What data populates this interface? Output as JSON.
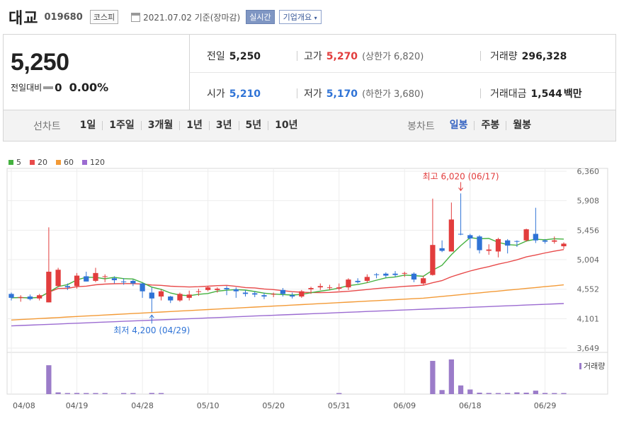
{
  "header": {
    "stock_name": "대교",
    "stock_code": "019680",
    "market": "코스피",
    "date_text": "2021.07.02 기준(장마감)",
    "realtime_label": "실시간",
    "company_info_label": "기업개요"
  },
  "summary": {
    "price": "5,250",
    "change_label": "전일대비",
    "change_value": "0",
    "change_rate": "0.00%",
    "prev_close_label": "전일",
    "prev_close": "5,250",
    "high_label": "고가",
    "high": "5,270",
    "upper_limit_label": "(상한가",
    "upper_limit": "6,820)",
    "volume_label": "거래량",
    "volume": "296,328",
    "open_label": "시가",
    "open": "5,210",
    "low_label": "저가",
    "low": "5,170",
    "lower_limit_label": "(하한가",
    "lower_limit": "3,680)",
    "amount_label": "거래대금",
    "amount": "1,544",
    "amount_unit": "백만"
  },
  "period_bar": {
    "line_label": "선차트",
    "line_periods": [
      "1일",
      "1주일",
      "3개월",
      "1년",
      "3년",
      "5년",
      "10년"
    ],
    "candle_label": "봉차트",
    "candle_periods": [
      "일봉",
      "주봉",
      "월봉"
    ],
    "active_candle": "일봉"
  },
  "colors": {
    "up": "#e23d3d",
    "down": "#2f73d6",
    "accent": "#3563c1",
    "ma5": "#44b13f",
    "ma20": "#e84a4a",
    "ma60": "#f39a36",
    "ma120": "#9b6bd1",
    "volume": "#9b7cc9"
  },
  "chart_data": {
    "type": "candlestick",
    "legend": [
      {
        "name": "5",
        "color": "#44b13f"
      },
      {
        "name": "20",
        "color": "#e84a4a"
      },
      {
        "name": "60",
        "color": "#f39a36"
      },
      {
        "name": "120",
        "color": "#9b6bd1"
      }
    ],
    "y_ticks": [
      "6,360",
      "5,908",
      "5,456",
      "5,004",
      "4,552",
      "4,101",
      "3,649"
    ],
    "ylim": [
      3649,
      6360
    ],
    "x_ticks": [
      {
        "label": "04/08",
        "index": 0
      },
      {
        "label": "04/19",
        "index": 7
      },
      {
        "label": "04/28",
        "index": 14
      },
      {
        "label": "05/10",
        "index": 21
      },
      {
        "label": "05/20",
        "index": 28
      },
      {
        "label": "05/31",
        "index": 35
      },
      {
        "label": "06/09",
        "index": 42
      },
      {
        "label": "06/18",
        "index": 49
      },
      {
        "label": "06/29",
        "index": 57
      }
    ],
    "annotations": {
      "high": {
        "text": "최고 6,020 (06/17)",
        "index": 48,
        "value": 6020
      },
      "low": {
        "text": "최저 4,200 (04/29)",
        "index": 15,
        "value": 4200
      }
    },
    "volume_label": "거래량",
    "candles": [
      [
        4480,
        4500,
        4380,
        4420
      ],
      [
        4420,
        4460,
        4360,
        4430
      ],
      [
        4440,
        4470,
        4380,
        4400
      ],
      [
        4410,
        4480,
        4380,
        4460
      ],
      [
        4350,
        5500,
        4350,
        4820
      ],
      [
        4600,
        4880,
        4580,
        4850
      ],
      [
        4600,
        4640,
        4540,
        4580
      ],
      [
        4600,
        4800,
        4560,
        4760
      ],
      [
        4750,
        4820,
        4670,
        4670
      ],
      [
        4680,
        4880,
        4660,
        4800
      ],
      [
        4740,
        4780,
        4660,
        4750
      ],
      [
        4720,
        4750,
        4640,
        4690
      ],
      [
        4670,
        4720,
        4620,
        4660
      ],
      [
        4680,
        4700,
        4600,
        4640
      ],
      [
        4640,
        4650,
        4420,
        4520
      ],
      [
        4500,
        4580,
        4200,
        4410
      ],
      [
        4440,
        4550,
        4380,
        4520
      ],
      [
        4440,
        4450,
        4340,
        4380
      ],
      [
        4380,
        4500,
        4360,
        4480
      ],
      [
        4420,
        4530,
        4380,
        4470
      ],
      [
        4520,
        4560,
        4450,
        4520
      ],
      [
        4540,
        4600,
        4520,
        4580
      ],
      [
        4540,
        4580,
        4500,
        4560
      ],
      [
        4570,
        4600,
        4460,
        4550
      ],
      [
        4550,
        4580,
        4420,
        4520
      ],
      [
        4500,
        4540,
        4440,
        4480
      ],
      [
        4490,
        4520,
        4430,
        4470
      ],
      [
        4460,
        4500,
        4400,
        4440
      ],
      [
        4470,
        4500,
        4430,
        4480
      ],
      [
        4540,
        4570,
        4440,
        4480
      ],
      [
        4460,
        4500,
        4410,
        4440
      ],
      [
        4440,
        4540,
        4420,
        4520
      ],
      [
        4550,
        4590,
        4480,
        4570
      ],
      [
        4580,
        4640,
        4540,
        4600
      ],
      [
        4580,
        4620,
        4540,
        4580
      ],
      [
        4560,
        4640,
        4530,
        4580
      ],
      [
        4580,
        4720,
        4540,
        4700
      ],
      [
        4680,
        4720,
        4640,
        4660
      ],
      [
        4680,
        4780,
        4650,
        4740
      ],
      [
        4780,
        4800,
        4720,
        4770
      ],
      [
        4790,
        4810,
        4730,
        4760
      ],
      [
        4790,
        4830,
        4740,
        4770
      ],
      [
        4790,
        4820,
        4740,
        4800
      ],
      [
        4790,
        4810,
        4660,
        4700
      ],
      [
        4640,
        4760,
        4620,
        4720
      ],
      [
        4770,
        5940,
        4760,
        5230
      ],
      [
        5180,
        5300,
        5120,
        5140
      ],
      [
        5130,
        5880,
        5130,
        5620
      ],
      [
        5400,
        6020,
        5380,
        5390
      ],
      [
        5380,
        5400,
        5180,
        5330
      ],
      [
        5360,
        5380,
        5100,
        5150
      ],
      [
        5140,
        5240,
        5080,
        5160
      ],
      [
        5130,
        5340,
        5040,
        5320
      ],
      [
        5300,
        5320,
        5100,
        5220
      ],
      [
        5290,
        5300,
        5200,
        5280
      ],
      [
        5300,
        5480,
        5280,
        5470
      ],
      [
        5400,
        5800,
        5260,
        5300
      ],
      [
        5300,
        5320,
        5250,
        5280
      ],
      [
        5280,
        5360,
        5250,
        5300
      ],
      [
        5210,
        5270,
        5170,
        5250
      ]
    ],
    "volume_rel": [
      0,
      0,
      0,
      0,
      1.0,
      0.06,
      0.03,
      0.04,
      0.02,
      0.03,
      0.01,
      0.0,
      0.02,
      0.03,
      0.0,
      0.04,
      0.02,
      0.0,
      0.0,
      0.0,
      0.0,
      0.0,
      0.0,
      0.0,
      0.0,
      0.0,
      0.0,
      0.0,
      0.0,
      0.0,
      0.0,
      0.0,
      0.0,
      0.0,
      0.0,
      0.02,
      0.0,
      0.0,
      0.0,
      0.0,
      0.0,
      0.0,
      0.0,
      0.0,
      0.0,
      1.15,
      0.14,
      1.2,
      0.3,
      0.16,
      0.05,
      0.04,
      0.03,
      0.04,
      0.06,
      0.05,
      0.12,
      0.04,
      0.03,
      0.02
    ]
  }
}
